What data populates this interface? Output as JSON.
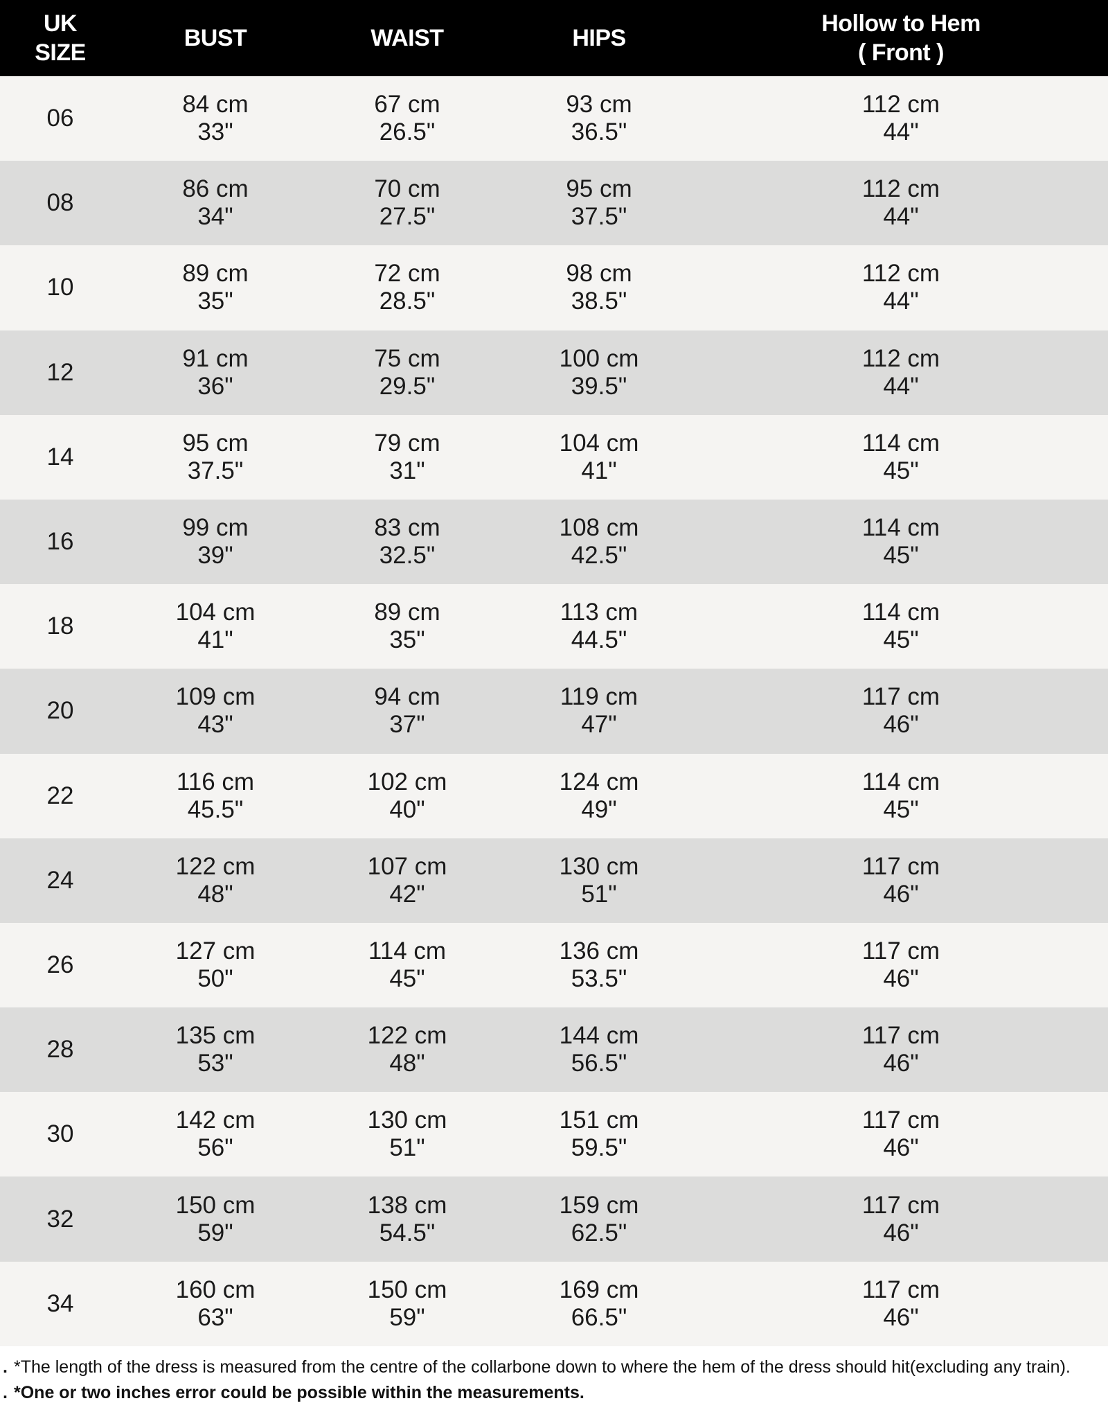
{
  "header": {
    "size": [
      "UK",
      "SIZE"
    ],
    "bust": "BUST",
    "waist": "WAIST",
    "hips": "HIPS",
    "hollow": [
      "Hollow to Hem",
      "( Front )"
    ]
  },
  "rows": [
    {
      "size": "06",
      "bust": [
        "84 cm",
        "33\""
      ],
      "waist": [
        "67 cm",
        "26.5\""
      ],
      "hips": [
        "93 cm",
        "36.5\""
      ],
      "hollow": [
        "112 cm",
        "44\""
      ]
    },
    {
      "size": "08",
      "bust": [
        "86 cm",
        "34\""
      ],
      "waist": [
        "70 cm",
        "27.5\""
      ],
      "hips": [
        "95 cm",
        "37.5\""
      ],
      "hollow": [
        "112 cm",
        "44\""
      ]
    },
    {
      "size": "10",
      "bust": [
        "89 cm",
        "35\""
      ],
      "waist": [
        "72 cm",
        "28.5\""
      ],
      "hips": [
        "98 cm",
        "38.5\""
      ],
      "hollow": [
        "112 cm",
        "44\""
      ]
    },
    {
      "size": "12",
      "bust": [
        "91 cm",
        "36\""
      ],
      "waist": [
        "75 cm",
        "29.5\""
      ],
      "hips": [
        "100 cm",
        "39.5\""
      ],
      "hollow": [
        "112 cm",
        "44\""
      ]
    },
    {
      "size": "14",
      "bust": [
        "95 cm",
        "37.5\""
      ],
      "waist": [
        "79 cm",
        "31\""
      ],
      "hips": [
        "104 cm",
        "41\""
      ],
      "hollow": [
        "114 cm",
        "45\""
      ]
    },
    {
      "size": "16",
      "bust": [
        "99 cm",
        "39\""
      ],
      "waist": [
        "83 cm",
        "32.5\""
      ],
      "hips": [
        "108 cm",
        "42.5\""
      ],
      "hollow": [
        "114 cm",
        "45\""
      ]
    },
    {
      "size": "18",
      "bust": [
        "104 cm",
        "41\""
      ],
      "waist": [
        "89 cm",
        "35\""
      ],
      "hips": [
        "113 cm",
        "44.5\""
      ],
      "hollow": [
        "114 cm",
        "45\""
      ]
    },
    {
      "size": "20",
      "bust": [
        "109 cm",
        "43\""
      ],
      "waist": [
        "94 cm",
        "37\""
      ],
      "hips": [
        "119 cm",
        "47\""
      ],
      "hollow": [
        "117 cm",
        "46\""
      ]
    },
    {
      "size": "22",
      "bust": [
        "116 cm",
        "45.5\""
      ],
      "waist": [
        "102 cm",
        "40\""
      ],
      "hips": [
        "124 cm",
        "49\""
      ],
      "hollow": [
        "114 cm",
        "45\""
      ]
    },
    {
      "size": "24",
      "bust": [
        "122 cm",
        "48\""
      ],
      "waist": [
        "107 cm",
        "42\""
      ],
      "hips": [
        "130 cm",
        "51\""
      ],
      "hollow": [
        "117 cm",
        "46\""
      ]
    },
    {
      "size": "26",
      "bust": [
        "127 cm",
        "50\""
      ],
      "waist": [
        "114 cm",
        "45\""
      ],
      "hips": [
        "136 cm",
        "53.5\""
      ],
      "hollow": [
        "117 cm",
        "46\""
      ]
    },
    {
      "size": "28",
      "bust": [
        "135 cm",
        "53\""
      ],
      "waist": [
        "122 cm",
        "48\""
      ],
      "hips": [
        "144 cm",
        "56.5\""
      ],
      "hollow": [
        "117 cm",
        "46\""
      ]
    },
    {
      "size": "30",
      "bust": [
        "142 cm",
        "56\""
      ],
      "waist": [
        "130 cm",
        "51\""
      ],
      "hips": [
        "151 cm",
        "59.5\""
      ],
      "hollow": [
        "117 cm",
        "46\""
      ]
    },
    {
      "size": "32",
      "bust": [
        "150 cm",
        "59\""
      ],
      "waist": [
        "138 cm",
        "54.5\""
      ],
      "hips": [
        "159 cm",
        "62.5\""
      ],
      "hollow": [
        "117 cm",
        "46\""
      ]
    },
    {
      "size": "34",
      "bust": [
        "160 cm",
        "63\""
      ],
      "waist": [
        "150 cm",
        "59\""
      ],
      "hips": [
        "169 cm",
        "66.5\""
      ],
      "hollow": [
        "117 cm",
        "46\""
      ]
    }
  ],
  "notes": {
    "bullet": ".",
    "length_note": "*The length of the dress is measured from the centre of the collarbone down to where the hem of the dress should hit(excluding any train).",
    "error_note": "*One or two inches error could be possible within the measurements."
  },
  "colors": {
    "header_bg": "#000000",
    "row_light": "#f5f4f2",
    "row_dark": "#dcdcdb"
  }
}
